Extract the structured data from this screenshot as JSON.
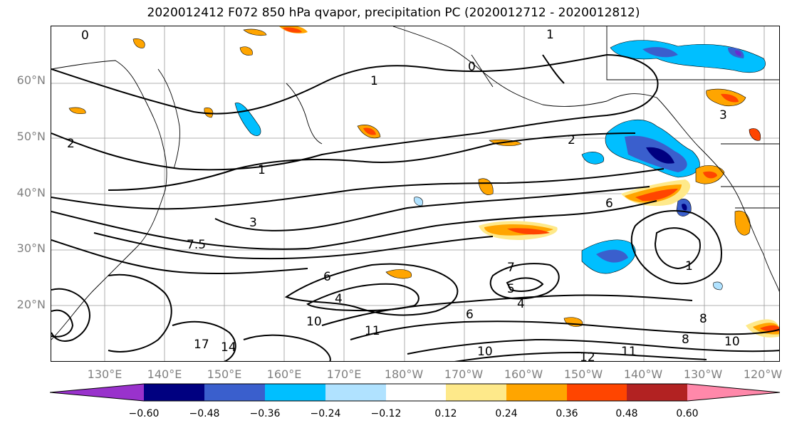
{
  "title": "2020012412 F072 850 hPa qvapor, precipitation PC (2020012712 - 2020012812)",
  "lat_labels": [
    "60°N",
    "50°N",
    "40°N",
    "30°N",
    "20°N"
  ],
  "lon_labels": [
    "130°E",
    "140°E",
    "150°E",
    "160°E",
    "170°E",
    "180°W",
    "170°W",
    "160°W",
    "150°W",
    "140°W",
    "130°W",
    "120°W"
  ],
  "colorbar": {
    "colors": [
      "#9932cc",
      "#000080",
      "#3a5fcd",
      "#00bfff",
      "#b0e2ff",
      "#ffffff",
      "#fee98a",
      "#ffa500",
      "#ff4500",
      "#b22222",
      "#ff88aa"
    ],
    "tick_labels": [
      "−0.60",
      "−0.48",
      "−0.36",
      "−0.24",
      "−0.12",
      "0.12",
      "0.24",
      "0.36",
      "0.48",
      "0.60"
    ]
  },
  "contour_labels": [
    "0",
    "0",
    "1",
    "1",
    "2",
    "2",
    "3",
    "3",
    "1",
    "1",
    "6",
    "6",
    "5",
    "7",
    "8",
    "10",
    "11",
    "10",
    "14",
    "12",
    "11",
    "8",
    "10",
    "4",
    "4",
    "7.5",
    "6",
    "17"
  ]
}
